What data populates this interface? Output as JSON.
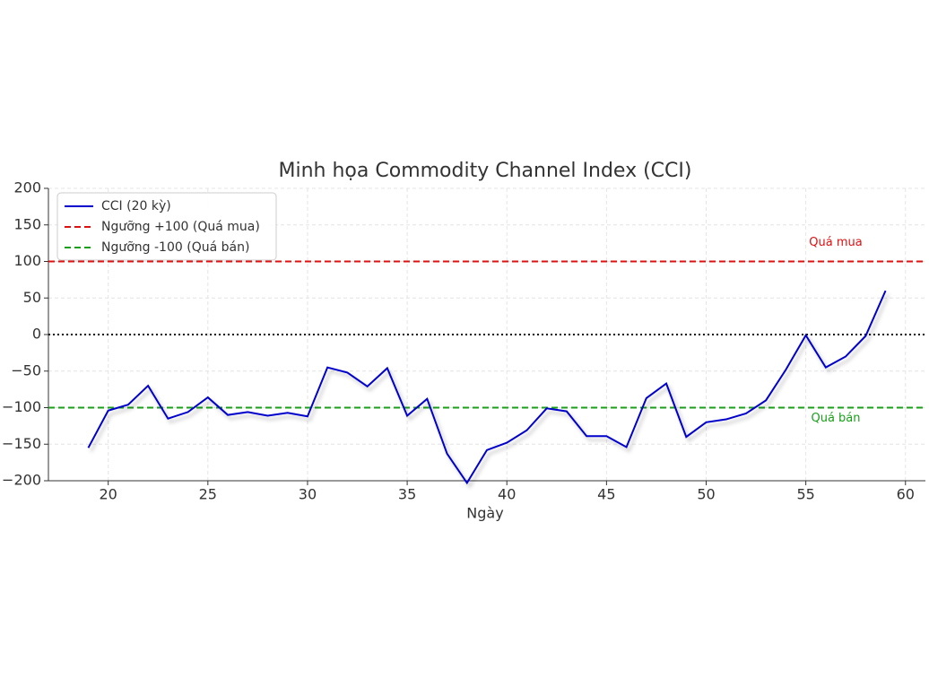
{
  "chart_data": {
    "type": "line",
    "title": "Minh họa Commodity Channel Index (CCI)",
    "x_label": "Ngày",
    "series": [
      {
        "name": "CCI (20 kỳ)",
        "color": "#0000cc",
        "x": [
          19,
          20,
          21,
          22,
          23,
          24,
          25,
          26,
          27,
          28,
          29,
          30,
          31,
          32,
          33,
          34,
          35,
          36,
          37,
          38,
          39,
          40,
          41,
          42,
          43,
          44,
          45,
          46,
          47,
          48,
          49,
          50,
          51,
          52,
          53,
          54,
          55,
          56,
          57,
          58,
          59
        ],
        "values": [
          -155,
          -104,
          -96,
          -70,
          -115,
          -106,
          -86,
          -110,
          -106,
          -111,
          -107,
          -112,
          -45,
          -52,
          -71,
          -46,
          -111,
          -88,
          -163,
          -203,
          -158,
          -148,
          -131,
          -101,
          -105,
          -139,
          -139,
          -154,
          -87,
          -67,
          -140,
          -120,
          -116,
          -108,
          -90,
          -48,
          -1,
          -45,
          -30,
          -2,
          60
        ]
      }
    ],
    "reference_lines": [
      {
        "name": "Ngưỡng +100 (Quá mua)",
        "value": 100,
        "color": "#e01010",
        "style": "dashed",
        "annotation": "Quá mua"
      },
      {
        "name": "Ngưỡng -100 (Quá bán)",
        "value": -100,
        "color": "#18a018",
        "style": "dashed",
        "annotation": "Quá bán"
      },
      {
        "value": 0,
        "color": "#111111",
        "style": "dotted"
      }
    ],
    "xlim": [
      17,
      61
    ],
    "ylim": [
      -200,
      200
    ],
    "xticks": [
      20,
      25,
      30,
      35,
      40,
      45,
      50,
      55,
      60
    ],
    "yticks": [
      {
        "value": -200,
        "label": "−200"
      },
      {
        "value": -150,
        "label": "−150"
      },
      {
        "value": -100,
        "label": "−100"
      },
      {
        "value": -50,
        "label": "−50"
      },
      0,
      50,
      100,
      150,
      200
    ],
    "grid": true,
    "legend": "upper left"
  }
}
